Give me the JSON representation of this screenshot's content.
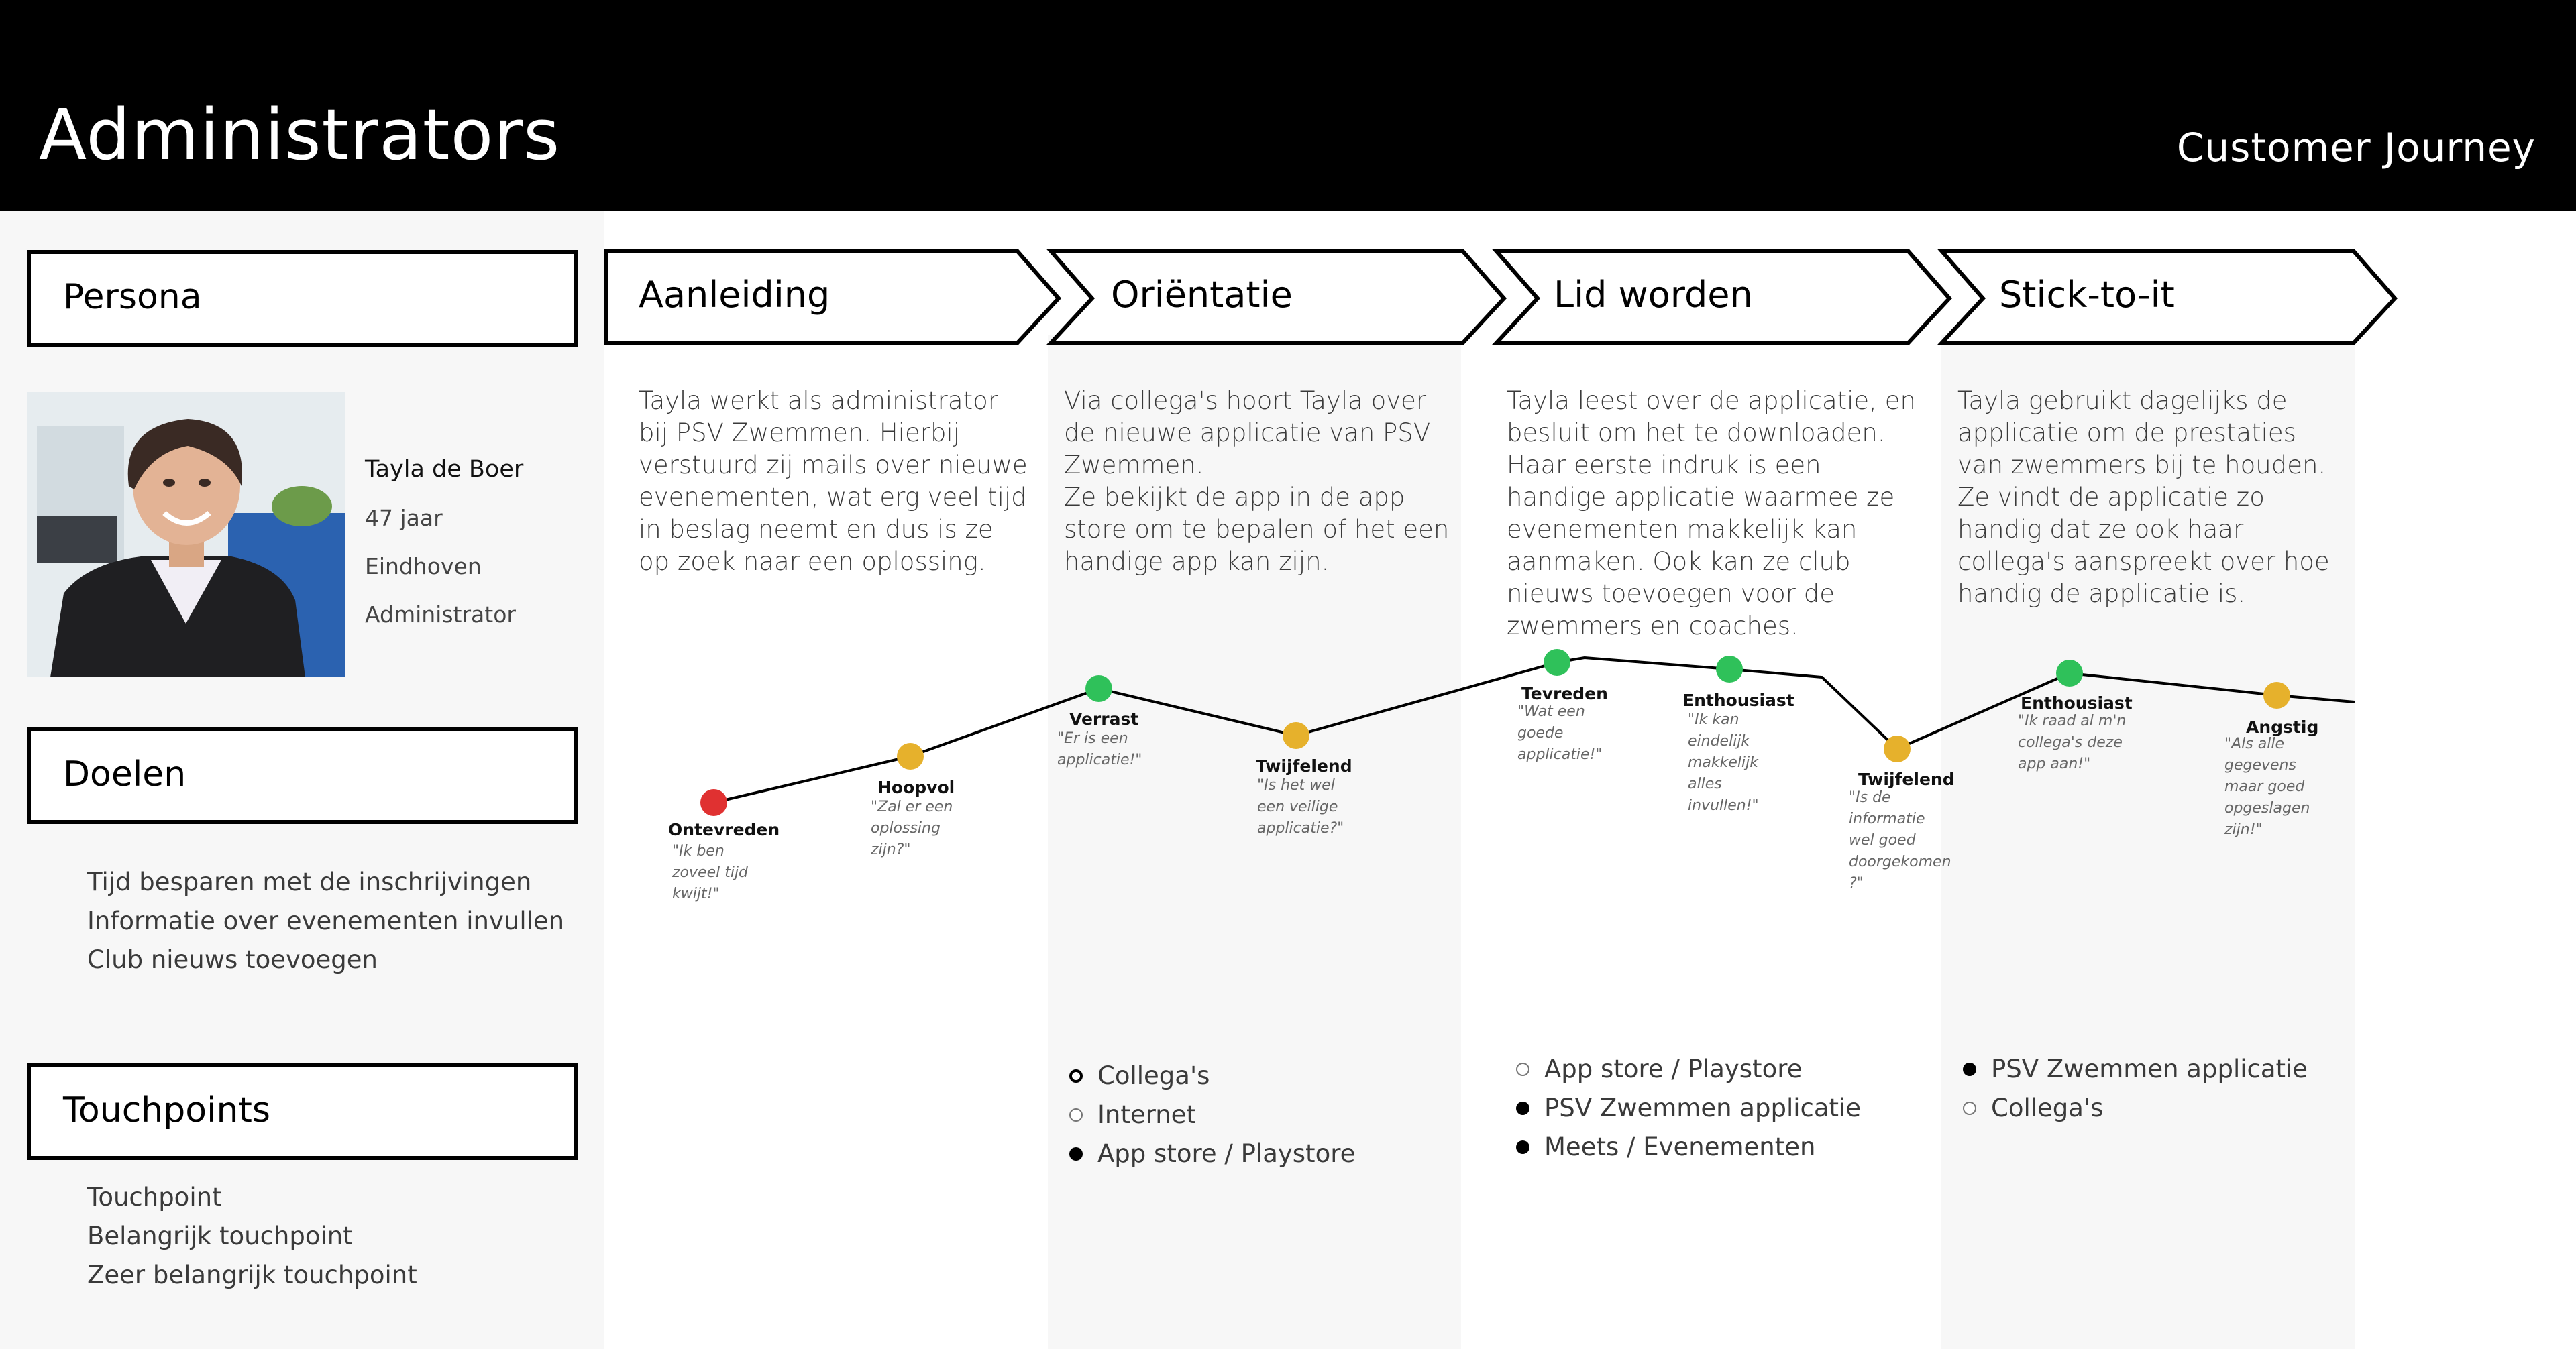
{
  "header": {
    "title": "Administrators",
    "subtitle": "Customer Journey"
  },
  "sidebar": {
    "persona_heading": "Persona",
    "persona": {
      "name": "Tayla de Boer",
      "age": "47 jaar",
      "city": "Eindhoven",
      "role": "Administrator"
    },
    "goals_heading": "Doelen",
    "goals": [
      "Tijd besparen met de inschrijvingen",
      "Informatie over evenementen invullen",
      "Club nieuws toevoegen"
    ],
    "touchpoints_heading": "Touchpoints",
    "touchpoint_legend": [
      "Touchpoint",
      "Belangrijk touchpoint",
      "Zeer belangrijk touchpoint"
    ]
  },
  "phases": [
    {
      "title": "Aanleiding",
      "description": "Tayla werkt als administrator bij PSV Zwemmen. Hierbij verstuurd zij mails over nieuwe evenementen, wat erg veel tijd in beslag neemt en dus is ze op zoek naar een oplossing."
    },
    {
      "title": "Oriëntatie",
      "description": "Via collega's hoort Tayla over de nieuwe applicatie van PSV Zwemmen.\nZe bekijkt de app in de app store om te bepalen of het een handige app kan zijn."
    },
    {
      "title": "Lid worden",
      "description": "Tayla leest over de applicatie, en besluit om het te downloaden. Haar eerste indruk is een handige applicatie waarmee ze evenementen makkelijk kan aanmaken. Ook kan ze club nieuws toevoegen voor de zwemmers en coaches."
    },
    {
      "title": "Stick-to-it",
      "description": "Tayla gebruikt dagelijks de applicatie om de prestaties van zwemmers bij te houden.\nZe vindt de applicatie zo handig dat ze ook haar collega's aanspreekt over hoe handig de applicatie is."
    }
  ],
  "emotions": [
    {
      "label": "Ontevreden",
      "quote": "\"Ik ben zoveel tijd kwijt!\"",
      "color": "#e03131",
      "sentiment": "negative"
    },
    {
      "label": "Hoopvol",
      "quote": "\"Zal er een oplossing zijn?\"",
      "color": "#e6b12c",
      "sentiment": "neutral"
    },
    {
      "label": "Verrast",
      "quote": "\"Er is een applicatie!\"",
      "color": "#2fc15a",
      "sentiment": "positive"
    },
    {
      "label": "Twijfelend",
      "quote": "\"Is het wel een veilige applicatie?\"",
      "color": "#e6b12c",
      "sentiment": "neutral"
    },
    {
      "label": "Tevreden",
      "quote": "\"Wat een goede applicatie!\"",
      "color": "#2fc15a",
      "sentiment": "positive"
    },
    {
      "label": "Enthousiast",
      "quote": "\"Ik kan eindelijk makkelijk alles invullen!\"",
      "color": "#2fc15a",
      "sentiment": "positive"
    },
    {
      "label": "Twijfelend",
      "quote": "\"Is de informatie wel goed doorgekomen ?\"",
      "color": "#e6b12c",
      "sentiment": "neutral"
    },
    {
      "label": "Enthousiast",
      "quote": "\"Ik raad al m'n collega's deze app aan!\"",
      "color": "#2fc15a",
      "sentiment": "positive"
    },
    {
      "label": "Angstig",
      "quote": "\"Als alle gegevens maar goed opgeslagen zijn!\"",
      "color": "#e6b12c",
      "sentiment": "neutral"
    }
  ],
  "touchpoints": {
    "orientatie": [
      {
        "label": "Collega's",
        "importance": "Belangrijk touchpoint"
      },
      {
        "label": "Internet",
        "importance": "Touchpoint"
      },
      {
        "label": "App store / Playstore",
        "importance": "Zeer belangrijk touchpoint"
      }
    ],
    "lid_worden": [
      {
        "label": "App store / Playstore",
        "importance": "Touchpoint"
      },
      {
        "label": "PSV Zwemmen applicatie",
        "importance": "Zeer belangrijk touchpoint"
      },
      {
        "label": "Meets / Evenementen",
        "importance": "Zeer belangrijk touchpoint"
      }
    ],
    "stick_to_it": [
      {
        "label": "PSV Zwemmen applicatie",
        "importance": "Zeer belangrijk touchpoint"
      },
      {
        "label": "Collega's",
        "importance": "Touchpoint"
      }
    ]
  }
}
